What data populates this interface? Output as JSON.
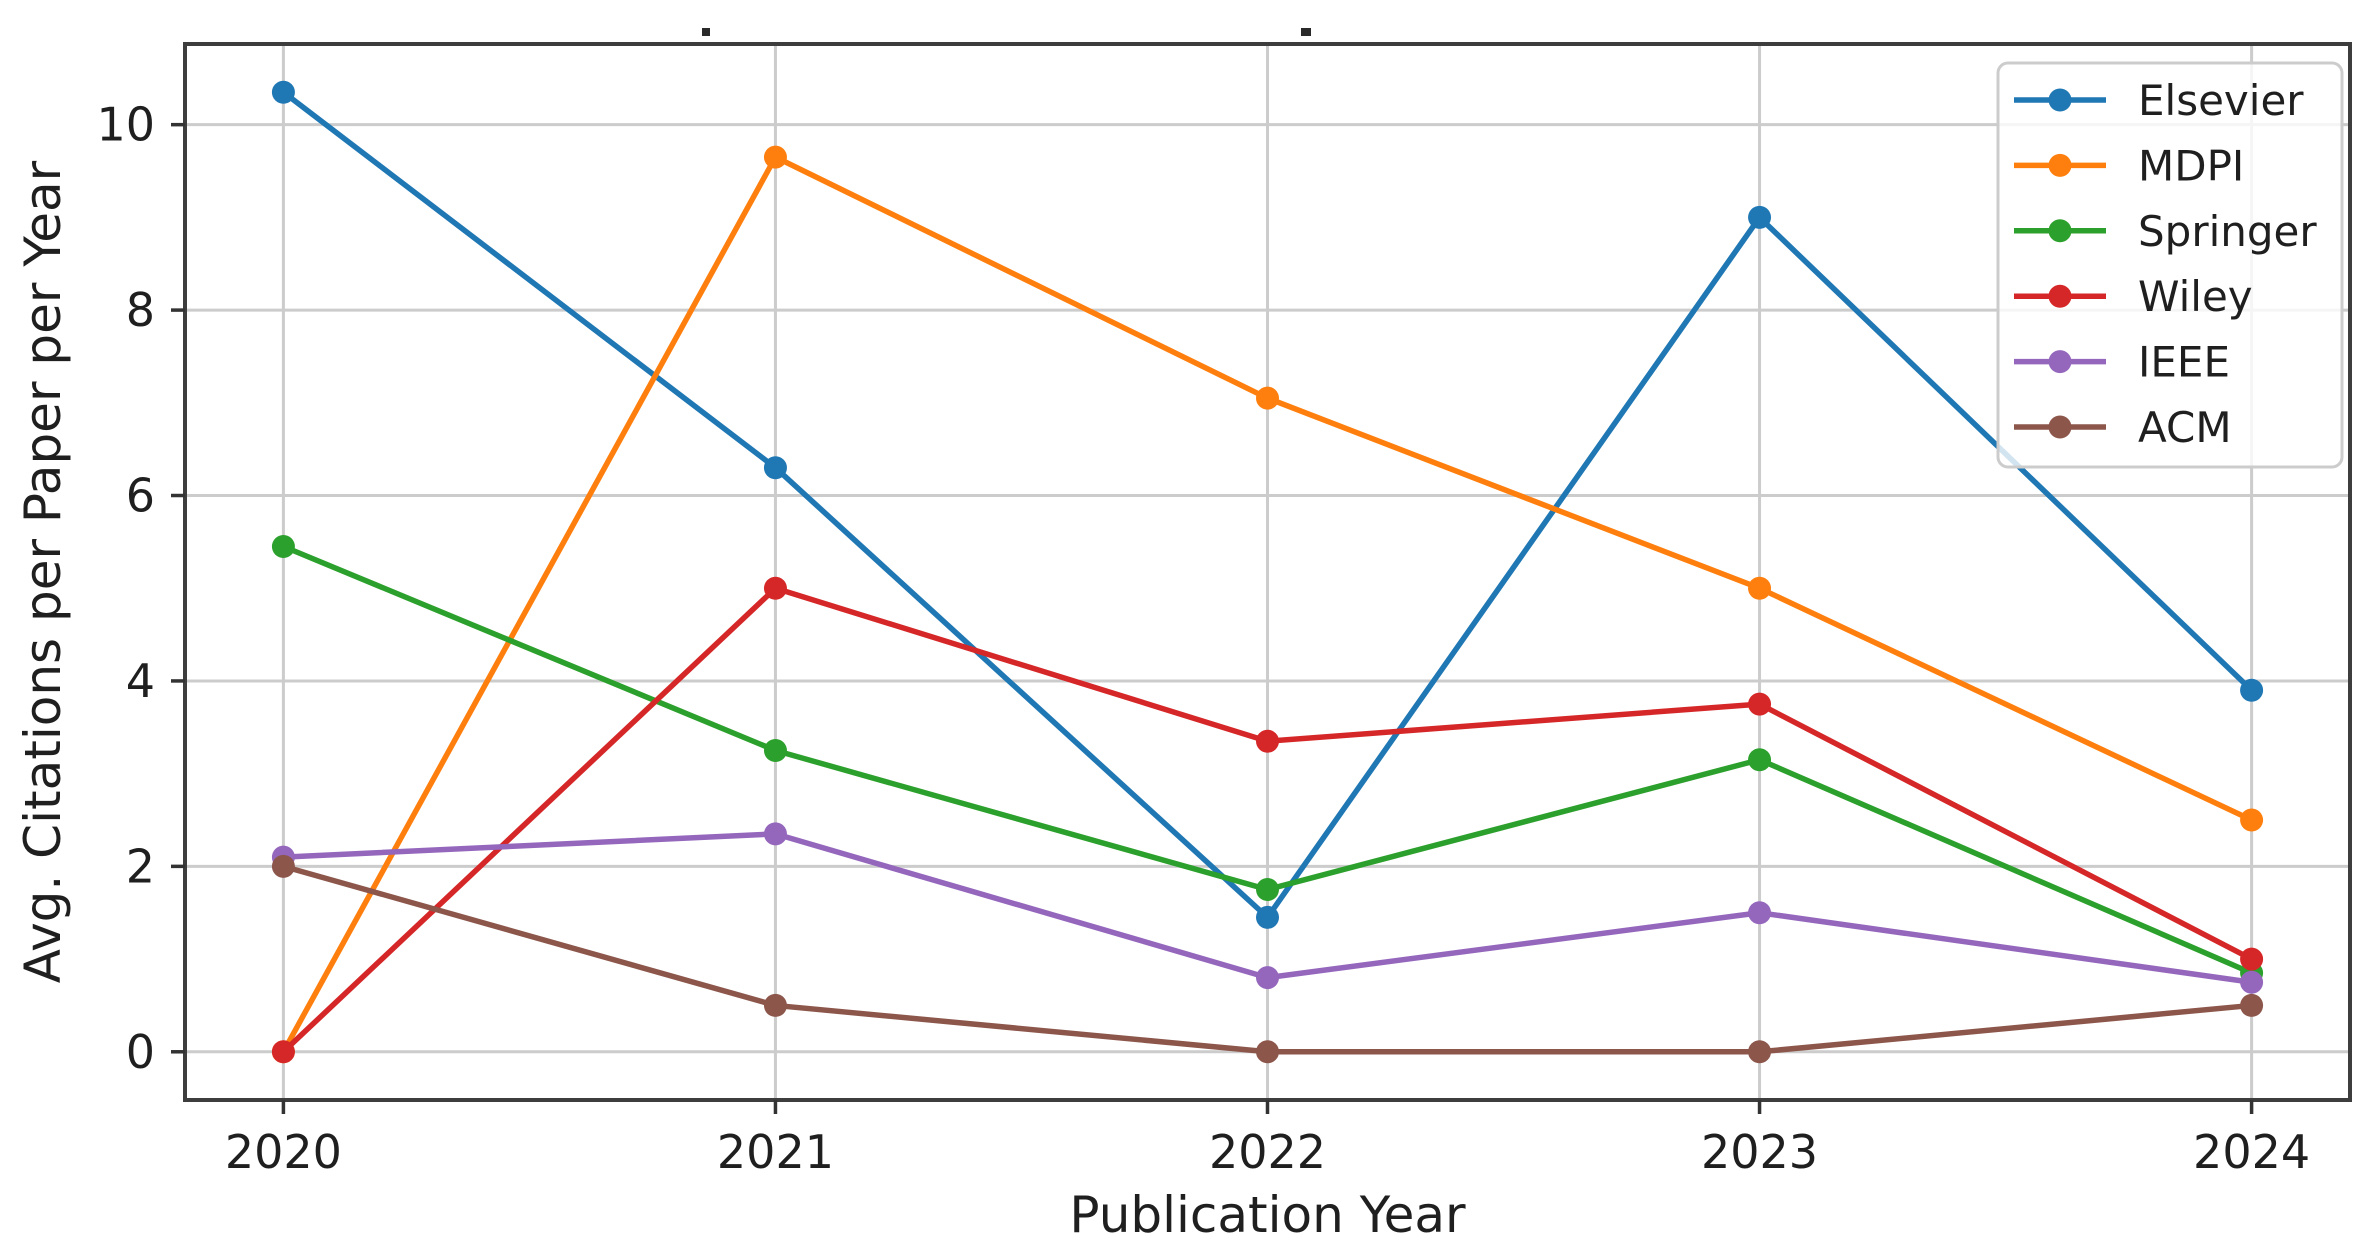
{
  "figure": {
    "background": "#ffffff",
    "note_title_clipped": "title text is cropped off at the top edge; only two tiny glyph tips remain visible"
  },
  "chart_data": {
    "type": "line",
    "title": "",
    "xlabel": "Publication Year",
    "ylabel": "Avg. Citations per Paper per Year",
    "x": [
      2020,
      2021,
      2022,
      2023,
      2024
    ],
    "x_tick_labels": [
      "2020",
      "2021",
      "2022",
      "2023",
      "2024"
    ],
    "y_ticks": [
      0,
      2,
      4,
      6,
      8,
      10
    ],
    "y_tick_labels": [
      "0",
      "2",
      "4",
      "6",
      "8",
      "10"
    ],
    "xlim": [
      2019.8,
      2024.2
    ],
    "ylim": [
      -0.52,
      10.87
    ],
    "grid": true,
    "legend_position": "upper right",
    "series": [
      {
        "name": "Elsevier",
        "color": "#1f77b4",
        "values": [
          10.35,
          6.3,
          1.45,
          9.0,
          3.9
        ]
      },
      {
        "name": "MDPI",
        "color": "#ff7f0e",
        "values": [
          0.0,
          9.65,
          7.05,
          5.0,
          2.5
        ]
      },
      {
        "name": "Springer",
        "color": "#2ca02c",
        "values": [
          5.45,
          3.25,
          1.75,
          3.15,
          0.85
        ]
      },
      {
        "name": "Wiley",
        "color": "#d62728",
        "values": [
          0.0,
          5.0,
          3.35,
          3.75,
          1.0
        ]
      },
      {
        "name": "IEEE",
        "color": "#9467bd",
        "values": [
          2.1,
          2.35,
          0.8,
          1.5,
          0.75
        ]
      },
      {
        "name": "ACM",
        "color": "#8c564b",
        "values": [
          2.0,
          0.5,
          0.0,
          0.0,
          0.5
        ]
      }
    ],
    "marker": "circle",
    "style": {
      "grid_color": "#cccccc",
      "spine_color": "#3d3d3d",
      "tick_color": "#333333",
      "text_color": "#1f1f1f",
      "legend_face": "rgba(255,255,255,0.8)",
      "legend_edge": "#cccccc"
    }
  }
}
